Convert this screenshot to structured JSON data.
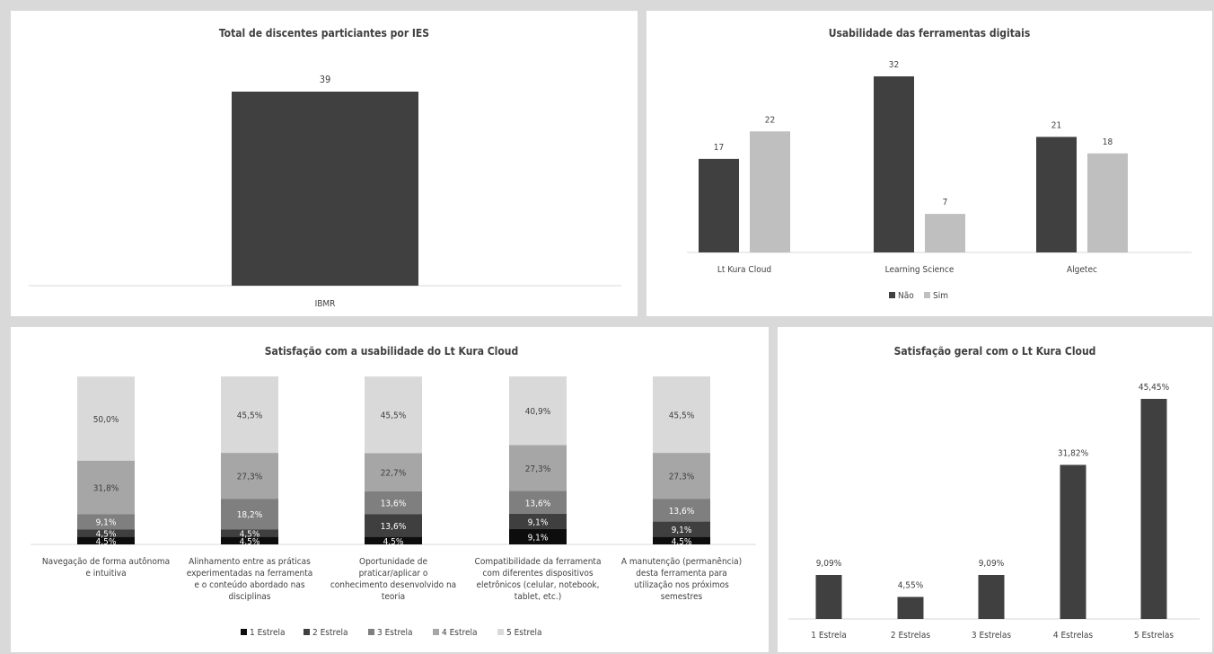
{
  "chart_data": [
    {
      "type": "bar",
      "title": "Total de discentes particiantes por IES",
      "categories": [
        "IBMR"
      ],
      "values": [
        39
      ],
      "colors": {
        "bar": "#404040"
      },
      "data_labels": [
        "39"
      ]
    },
    {
      "type": "bar",
      "title": "Usabilidade das ferramentas digitais",
      "categories": [
        "Lt Kura Cloud",
        "Learning Science",
        "Algetec"
      ],
      "series": [
        {
          "name": "Não",
          "values": [
            17,
            32,
            21
          ],
          "color": "#404040",
          "labels": [
            "17",
            "32",
            "21"
          ]
        },
        {
          "name": "Sim",
          "values": [
            22,
            7,
            18
          ],
          "color": "#bfbfbf",
          "labels": [
            "22",
            "7",
            "18"
          ]
        }
      ],
      "legend": "bottom"
    },
    {
      "type": "bar",
      "stacked": true,
      "title": "Satisfação com a usabilidade do Lt Kura Cloud",
      "categories": [
        [
          "Navegação de forma autônoma",
          "e intuitiva"
        ],
        [
          "Alinhamento entre as práticas",
          "experimentadas na ferramenta",
          "e o conteúdo abordado nas",
          "disciplinas"
        ],
        [
          "Oportunidade de",
          "praticar/aplicar o",
          "conhecimento desenvolvido na",
          "teoria"
        ],
        [
          "Compatibilidade da ferramenta",
          "com diferentes dispositivos",
          "eletrônicos (celular, notebook,",
          "tablet, etc.)"
        ],
        [
          "A manutenção (permanência)",
          "desta ferramenta para",
          "utilização nos próximos",
          "semestres"
        ]
      ],
      "series": [
        {
          "name": "1 Estrela",
          "values": [
            4.5,
            4.5,
            4.5,
            9.1,
            4.5
          ],
          "labels": [
            "4,5%",
            "4,5%",
            "4,5%",
            "9,1%",
            "4,5%"
          ],
          "color": "#0d0d0d"
        },
        {
          "name": "2 Estrela",
          "values": [
            4.5,
            4.5,
            13.6,
            9.1,
            9.1
          ],
          "labels": [
            "4,5%",
            "4,5%",
            "13,6%",
            "9,1%",
            "9,1%"
          ],
          "color": "#3f3f3f"
        },
        {
          "name": "3 Estrela",
          "values": [
            9.1,
            18.2,
            13.6,
            13.6,
            13.6
          ],
          "labels": [
            "9,1%",
            "18,2%",
            "13,6%",
            "13,6%",
            "13,6%"
          ],
          "color": "#7f7f7f"
        },
        {
          "name": "4 Estrela",
          "values": [
            31.8,
            27.3,
            22.7,
            27.3,
            27.3
          ],
          "labels": [
            "31,8%",
            "27,3%",
            "22,7%",
            "27,3%",
            "27,3%"
          ],
          "color": "#a6a6a6"
        },
        {
          "name": "5 Estrela",
          "values": [
            50.0,
            45.5,
            45.5,
            40.9,
            45.5
          ],
          "labels": [
            "50,0%",
            "45,5%",
            "45,5%",
            "40,9%",
            "45,5%"
          ],
          "color": "#d9d9d9"
        }
      ],
      "legend": "bottom"
    },
    {
      "type": "bar",
      "title": "Satisfação geral com o Lt Kura Cloud",
      "categories": [
        "1 Estrela",
        "2 Estrelas",
        "3 Estrelas",
        "4 Estrelas",
        "5 Estrelas"
      ],
      "values": [
        9.09,
        4.55,
        9.09,
        31.82,
        45.45
      ],
      "data_labels": [
        "9,09%",
        "4,55%",
        "9,09%",
        "31,82%",
        "45,45%"
      ],
      "colors": {
        "bar": "#404040"
      }
    }
  ]
}
